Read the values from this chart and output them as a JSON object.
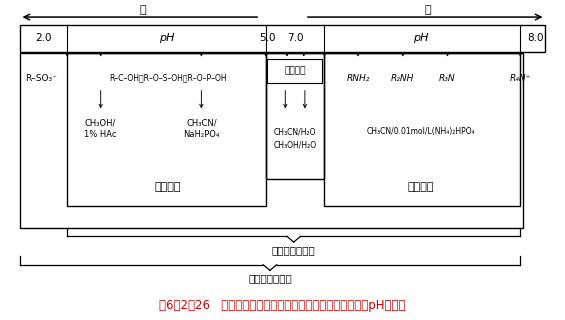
{
  "fig_width": 5.65,
  "fig_height": 3.2,
  "dpi": 100,
  "bg_color": "#ffffff",
  "title": "图6－2－26   分析中性分子和可离解酸、碱时适用的流动相的pH值范围",
  "title_color": "#cc0000",
  "title_fontsize": 8.5,
  "arrow_acid_label": "酸",
  "arrow_base_label": "碱",
  "label_2_0": "2.0",
  "label_5_0": "5.0",
  "label_7_0": "7.0",
  "label_8_0": "8.0",
  "label_pH_left": "pH",
  "label_pH_right": "pH",
  "label_zhongxing": "中性分子",
  "label_lizi_left": "离子抑制",
  "label_lizi_right": "离子抑制",
  "label_rp": "反相键合相色谱",
  "label_ion": "反相离子对色谱",
  "label_rso3": "R–SO₃⁻",
  "label_chem_left": "R–C–OH，R–O–S–OH，R–O–P–OH",
  "label_ch3oh": "CH₃OH/\n1% HAc",
  "label_ch3cn_left": "CH₃CN/\nNaH₂PO₄",
  "label_ch3cn_mid1": "CH₃CN/H₂O",
  "label_ch3cn_mid2": "CH₃OH/H₂O",
  "label_rnh2": "RNH₂",
  "label_r2nh": "R₂NH",
  "label_r3n": "R₃N",
  "label_r4n": "R₄N⁺",
  "label_ch3cn_right": "CH₃CN/0.01mol/L(NH₄)₂HPO₄"
}
